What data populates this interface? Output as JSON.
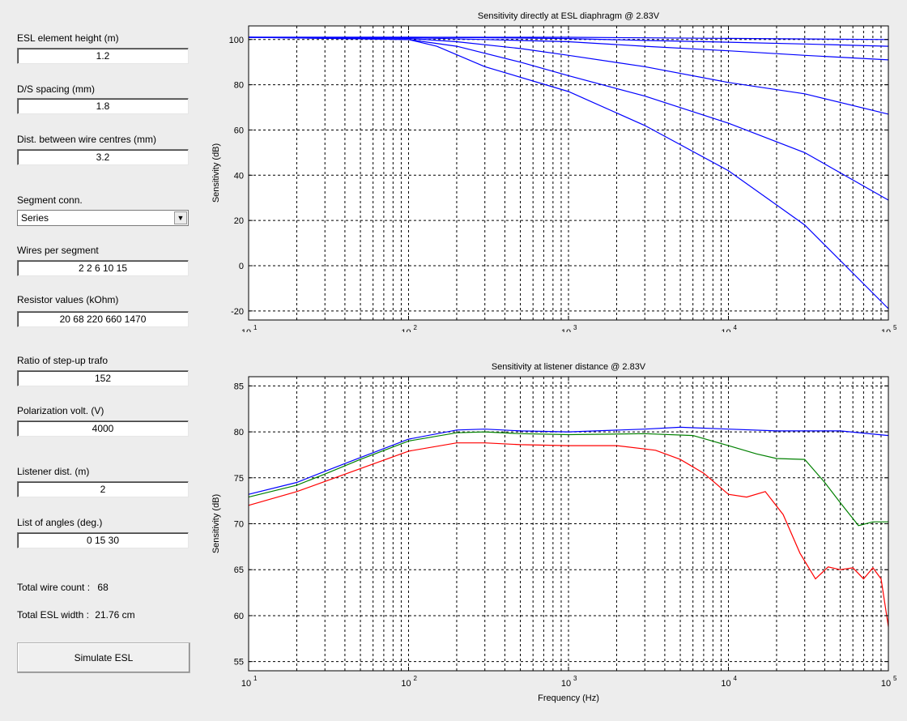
{
  "form": {
    "element_height": {
      "label": "ESL element height (m)",
      "value": "1.2"
    },
    "ds_spacing": {
      "label": "D/S spacing (mm)",
      "value": "1.8"
    },
    "wire_dist": {
      "label": "Dist. between wire centres (mm)",
      "value": "3.2"
    },
    "segment_conn": {
      "label": "Segment conn.",
      "value": "Series"
    },
    "wires_per_segment": {
      "label": "Wires per segment",
      "value": "2 2 6 10 15"
    },
    "resistor_values": {
      "label": "Resistor values (kOhm)",
      "value": "20 68 220 660 1470"
    },
    "stepup_ratio": {
      "label": "Ratio of step-up trafo",
      "value": "152"
    },
    "polarization": {
      "label": "Polarization volt. (V)",
      "value": "4000"
    },
    "listener_dist": {
      "label": "Listener dist. (m)",
      "value": "2"
    },
    "angles": {
      "label": "List of angles (deg.)",
      "value": "0 15 30"
    },
    "total_wire_count": {
      "label": "Total wire count :",
      "value": "68"
    },
    "total_width": {
      "label": "Total ESL width :",
      "value": "21.76 cm"
    },
    "simulate_label": "Simulate ESL"
  },
  "icons": {
    "dropdown": "chevron-down-icon"
  },
  "colors": {
    "blue": "#0000ff",
    "green": "#008000",
    "red": "#ff0000",
    "axes_bg": "#ffffff",
    "window_bg": "#ededed"
  },
  "chart_data": [
    {
      "type": "line",
      "title": "Sensitivity directly at ESL diaphragm @ 2.83V",
      "xlabel": "",
      "ylabel": "Sensitivity (dB)",
      "xscale": "log",
      "xlim": [
        10,
        100000
      ],
      "ylim": [
        -24,
        106
      ],
      "yticks": [
        -20,
        0,
        20,
        40,
        60,
        80,
        100
      ],
      "xticks": [
        {
          "base": "10",
          "exp": "1"
        },
        {
          "base": "10",
          "exp": "2"
        },
        {
          "base": "10",
          "exp": "3"
        },
        {
          "base": "10",
          "exp": "4"
        },
        {
          "base": "10",
          "exp": "5"
        }
      ],
      "grid": true,
      "series": [
        {
          "color": "#0000ff",
          "x": [
            10,
            100,
            1000,
            10000,
            100000
          ],
          "y": [
            101,
            101,
            101,
            100.5,
            100
          ]
        },
        {
          "color": "#0000ff",
          "x": [
            10,
            100,
            300,
            1000,
            3000,
            10000,
            30000,
            100000
          ],
          "y": [
            101,
            101,
            100.8,
            100.4,
            99.6,
            98.8,
            98,
            97
          ]
        },
        {
          "color": "#0000ff",
          "x": [
            10,
            100,
            300,
            1000,
            3000,
            10000,
            30000,
            100000
          ],
          "y": [
            101,
            100.8,
            100,
            99,
            97,
            95,
            93,
            91
          ]
        },
        {
          "color": "#0000ff",
          "x": [
            10,
            100,
            200,
            500,
            1000,
            3000,
            10000,
            30000,
            100000
          ],
          "y": [
            101,
            100.5,
            99,
            96,
            93,
            88,
            81,
            76,
            67
          ]
        },
        {
          "color": "#0000ff",
          "x": [
            10,
            100,
            200,
            500,
            1000,
            3000,
            10000,
            30000,
            100000
          ],
          "y": [
            101,
            100,
            97,
            90,
            84,
            75,
            63,
            50,
            29
          ]
        },
        {
          "color": "#0000ff",
          "x": [
            10,
            100,
            150,
            300,
            1000,
            3000,
            10000,
            30000,
            100000
          ],
          "y": [
            101,
            100,
            97,
            88,
            77,
            62,
            42,
            18,
            -19
          ]
        }
      ]
    },
    {
      "type": "line",
      "title": "Sensitivity at listener distance @ 2.83V",
      "xlabel": "Frequency (Hz)",
      "ylabel": "Sensitivity (dB)",
      "xscale": "log",
      "xlim": [
        10,
        100000
      ],
      "ylim": [
        54,
        86
      ],
      "yticks": [
        55,
        60,
        65,
        70,
        75,
        80,
        85
      ],
      "xticks": [
        {
          "base": "10",
          "exp": "1"
        },
        {
          "base": "10",
          "exp": "2"
        },
        {
          "base": "10",
          "exp": "3"
        },
        {
          "base": "10",
          "exp": "4"
        },
        {
          "base": "10",
          "exp": "5"
        }
      ],
      "grid": true,
      "series": [
        {
          "color": "#0000ff",
          "x": [
            10,
            20,
            30,
            50,
            100,
            200,
            300,
            500,
            1000,
            3000,
            5000,
            10000,
            20000,
            50000,
            100000
          ],
          "y": [
            73.2,
            74.5,
            75.7,
            77.2,
            79.2,
            80.2,
            80.3,
            80.1,
            80.0,
            80.3,
            80.5,
            80.3,
            80.1,
            80.1,
            79.6
          ]
        },
        {
          "color": "#008000",
          "x": [
            10,
            20,
            30,
            50,
            100,
            200,
            300,
            500,
            1000,
            3000,
            6000,
            10000,
            15000,
            20000,
            30000,
            40000,
            50000,
            65000,
            80000,
            100000
          ],
          "y": [
            72.9,
            74.2,
            75.4,
            77.0,
            79.0,
            79.9,
            80.0,
            79.8,
            79.7,
            79.8,
            79.6,
            78.5,
            77.6,
            77.1,
            77.0,
            74.5,
            72.3,
            69.8,
            70.2,
            70.2
          ]
        },
        {
          "color": "#ff0000",
          "x": [
            10,
            20,
            30,
            50,
            100,
            200,
            300,
            500,
            1000,
            2000,
            3500,
            5000,
            7000,
            10000,
            13000,
            17000,
            22000,
            28000,
            35000,
            42000,
            50000,
            60000,
            70000,
            80000,
            90000,
            100000
          ],
          "y": [
            72.0,
            73.5,
            74.6,
            76.0,
            77.9,
            78.8,
            78.8,
            78.6,
            78.5,
            78.5,
            78.0,
            77.0,
            75.5,
            73.2,
            72.9,
            73.5,
            71.0,
            66.8,
            64.0,
            65.3,
            65.0,
            65.2,
            64.0,
            65.2,
            64.0,
            58.8
          ]
        }
      ]
    }
  ]
}
